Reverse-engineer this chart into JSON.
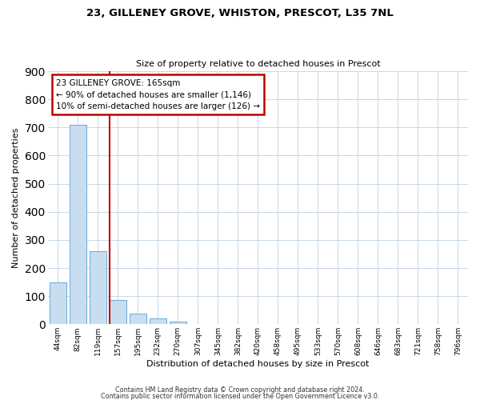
{
  "title": "23, GILLENEY GROVE, WHISTON, PRESCOT, L35 7NL",
  "subtitle": "Size of property relative to detached houses in Prescot",
  "xlabel": "Distribution of detached houses by size in Prescot",
  "ylabel": "Number of detached properties",
  "bar_values": [
    150,
    710,
    260,
    85,
    37,
    22,
    10,
    0,
    0,
    0,
    0,
    0,
    0,
    0,
    0,
    0,
    0,
    0,
    0,
    0,
    0
  ],
  "bar_labels": [
    "44sqm",
    "82sqm",
    "119sqm",
    "157sqm",
    "195sqm",
    "232sqm",
    "270sqm",
    "307sqm",
    "345sqm",
    "382sqm",
    "420sqm",
    "458sqm",
    "495sqm",
    "533sqm",
    "570sqm",
    "608sqm",
    "646sqm",
    "683sqm",
    "721sqm",
    "758sqm",
    "796sqm"
  ],
  "bar_color": "#c9ddf0",
  "bar_edge_color": "#6aaad4",
  "vline_color": "#c00000",
  "annotation_box_color": "#c00000",
  "annotation_line1": "23 GILLENEY GROVE: 165sqm",
  "annotation_line2": "← 90% of detached houses are smaller (1,146)",
  "annotation_line3": "10% of semi-detached houses are larger (126) →",
  "ylim": [
    0,
    900
  ],
  "yticks": [
    0,
    100,
    200,
    300,
    400,
    500,
    600,
    700,
    800,
    900
  ],
  "footer_line1": "Contains HM Land Registry data © Crown copyright and database right 2024.",
  "footer_line2": "Contains public sector information licensed under the Open Government Licence v3.0.",
  "background_color": "#ffffff",
  "grid_color": "#c8d8e8"
}
